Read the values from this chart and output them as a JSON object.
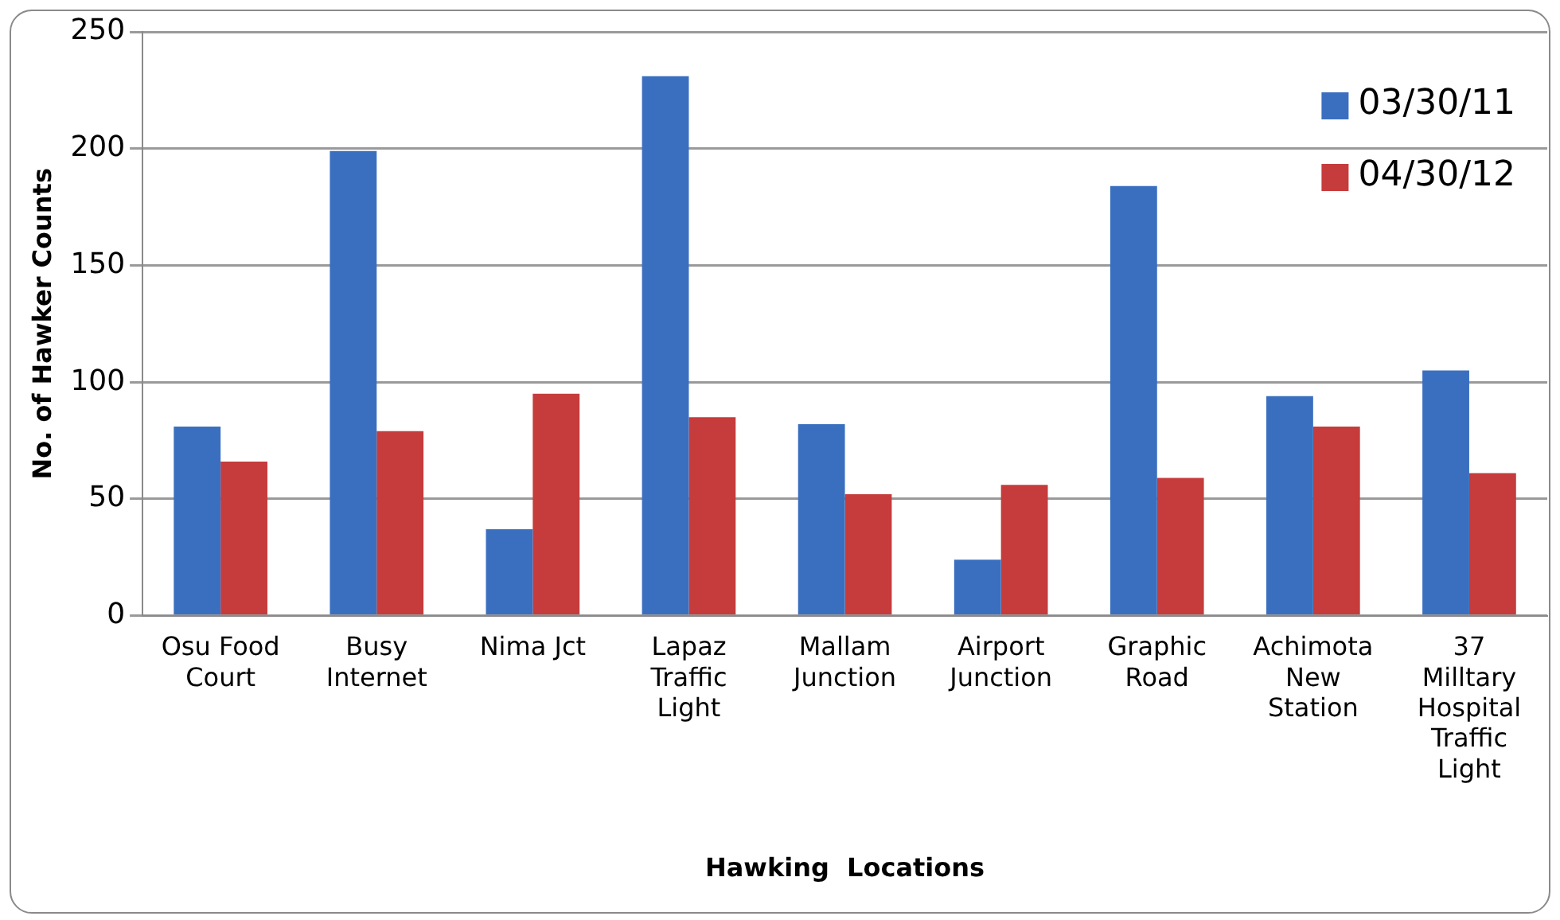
{
  "chart_data": {
    "type": "bar",
    "xlabel": "Hawking  Locations",
    "ylabel": "No. of Hawker Counts",
    "categories": [
      "Osu Food Court",
      "Busy Internet",
      "Nima Jct",
      "Lapaz Traffic Light",
      "Mallam Junction",
      "Airport Junction",
      "Graphic Road",
      "Achimota New Station",
      "37 Milltary Hospital Traffic Light"
    ],
    "series": [
      {
        "name": "03/30/11",
        "color": "#3a6fbf",
        "values": [
          81,
          199,
          37,
          231,
          82,
          24,
          184,
          94,
          105
        ]
      },
      {
        "name": "04/30/12",
        "color": "#c63b3b",
        "values": [
          66,
          79,
          95,
          85,
          52,
          56,
          59,
          81,
          61
        ]
      }
    ],
    "ylim": [
      0,
      250
    ],
    "yticks": [
      0,
      50,
      100,
      150,
      200,
      250
    ],
    "grid": "y",
    "legend": "top right"
  }
}
